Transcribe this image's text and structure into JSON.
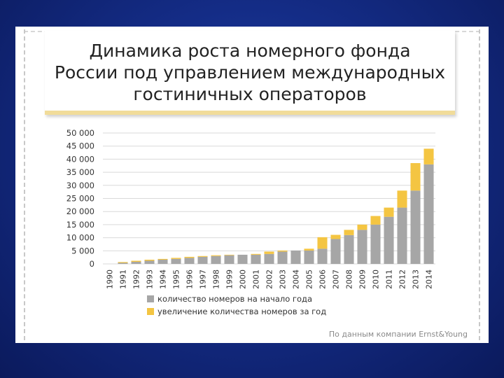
{
  "title": "Динамика роста номерного фонда\nРоссии под управлением международных\nгостиничных операторов",
  "source": "По данным компании Ernst&Young",
  "colors": {
    "base": "#a6a6a6",
    "increase": "#f4c542",
    "grid": "#d9d9d9",
    "axis_text": "#333333"
  },
  "chart_data": {
    "type": "bar",
    "stacked": true,
    "categories": [
      "1990",
      "1991",
      "1992",
      "1993",
      "1994",
      "1995",
      "1996",
      "1997",
      "1998",
      "1999",
      "2000",
      "2001",
      "2002",
      "2003",
      "2004",
      "2005",
      "2006",
      "2007",
      "2008",
      "2009",
      "2010",
      "2011",
      "2012",
      "2013",
      "2014"
    ],
    "series": [
      {
        "name": "количество номеров на начало года",
        "color": "#a6a6a6",
        "values": [
          0,
          400,
          800,
          1200,
          1600,
          1900,
          2300,
          2700,
          3000,
          3300,
          3500,
          3500,
          3800,
          4700,
          5100,
          5100,
          5800,
          9500,
          11000,
          13000,
          15000,
          18000,
          21500,
          28000,
          38000
        ]
      },
      {
        "name": "увеличение количества номеров за год",
        "color": "#f4c542",
        "values": [
          0,
          300,
          400,
          400,
          300,
          400,
          400,
          300,
          300,
          200,
          0,
          300,
          900,
          400,
          0,
          700,
          4400,
          1600,
          2000,
          2000,
          3300,
          3500,
          6500,
          10500,
          6000
        ]
      }
    ],
    "yticks": [
      "50 000",
      "45 000",
      "40 000",
      "35 000",
      "30 000",
      "25 000",
      "20 000",
      "15 000",
      "10 000",
      "5 000",
      "0"
    ],
    "ylim": [
      0,
      50000
    ],
    "grid": true,
    "legend_position": "bottom-left"
  }
}
